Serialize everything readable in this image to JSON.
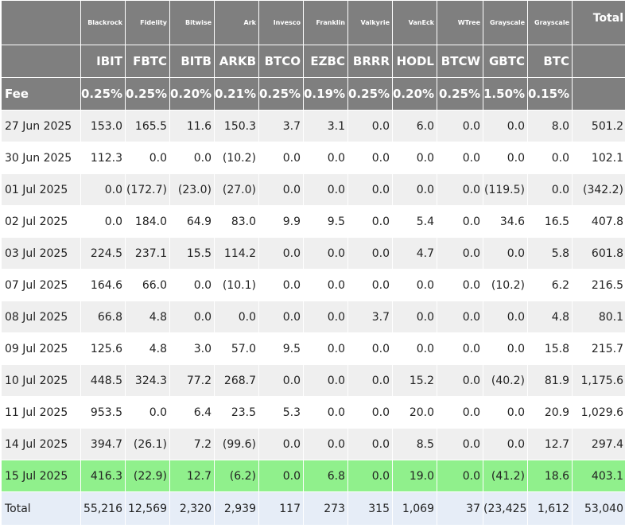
{
  "header": {
    "issuers": [
      "Blackrock",
      "Fidelity",
      "Bitwise",
      "Ark",
      "Invesco",
      "Franklin",
      "Valkyrie",
      "VanEck",
      "WTree",
      "Grayscale",
      "Grayscale"
    ],
    "total_label": "Total",
    "tickers": [
      "IBIT",
      "FBTC",
      "BITB",
      "ARKB",
      "BTCO",
      "EZBC",
      "BRRR",
      "HODL",
      "BTCW",
      "GBTC",
      "BTC"
    ],
    "fee_label": "Fee",
    "fees": [
      "0.25%",
      "0.25%",
      "0.20%",
      "0.21%",
      "0.25%",
      "0.19%",
      "0.25%",
      "0.20%",
      "0.25%",
      "1.50%",
      "0.15%"
    ]
  },
  "rows": [
    {
      "date": "27 Jun 2025",
      "cells": [
        "153.0",
        "165.5",
        "11.6",
        "150.3",
        "3.7",
        "3.1",
        "0.0",
        "6.0",
        "0.0",
        "0.0",
        "8.0"
      ],
      "total": "501.2"
    },
    {
      "date": "30 Jun 2025",
      "cells": [
        "112.3",
        "0.0",
        "0.0",
        "(10.2)",
        "0.0",
        "0.0",
        "0.0",
        "0.0",
        "0.0",
        "0.0",
        "0.0"
      ],
      "total": "102.1"
    },
    {
      "date": "01 Jul 2025",
      "cells": [
        "0.0",
        "(172.7)",
        "(23.0)",
        "(27.0)",
        "0.0",
        "0.0",
        "0.0",
        "0.0",
        "0.0",
        "(119.5)",
        "0.0"
      ],
      "total": "(342.2)"
    },
    {
      "date": "02 Jul 2025",
      "cells": [
        "0.0",
        "184.0",
        "64.9",
        "83.0",
        "9.9",
        "9.5",
        "0.0",
        "5.4",
        "0.0",
        "34.6",
        "16.5"
      ],
      "total": "407.8"
    },
    {
      "date": "03 Jul 2025",
      "cells": [
        "224.5",
        "237.1",
        "15.5",
        "114.2",
        "0.0",
        "0.0",
        "0.0",
        "4.7",
        "0.0",
        "0.0",
        "5.8"
      ],
      "total": "601.8"
    },
    {
      "date": "07 Jul 2025",
      "cells": [
        "164.6",
        "66.0",
        "0.0",
        "(10.1)",
        "0.0",
        "0.0",
        "0.0",
        "0.0",
        "0.0",
        "(10.2)",
        "6.2"
      ],
      "total": "216.5"
    },
    {
      "date": "08 Jul 2025",
      "cells": [
        "66.8",
        "4.8",
        "0.0",
        "0.0",
        "0.0",
        "0.0",
        "3.7",
        "0.0",
        "0.0",
        "0.0",
        "4.8"
      ],
      "total": "80.1"
    },
    {
      "date": "09 Jul 2025",
      "cells": [
        "125.6",
        "4.8",
        "3.0",
        "57.0",
        "9.5",
        "0.0",
        "0.0",
        "0.0",
        "0.0",
        "0.0",
        "15.8"
      ],
      "total": "215.7"
    },
    {
      "date": "10 Jul 2025",
      "cells": [
        "448.5",
        "324.3",
        "77.2",
        "268.7",
        "0.0",
        "0.0",
        "0.0",
        "15.2",
        "0.0",
        "(40.2)",
        "81.9"
      ],
      "total": "1,175.6"
    },
    {
      "date": "11 Jul 2025",
      "cells": [
        "953.5",
        "0.0",
        "6.4",
        "23.5",
        "5.3",
        "0.0",
        "0.0",
        "20.0",
        "0.0",
        "0.0",
        "20.9"
      ],
      "total": "1,029.6"
    },
    {
      "date": "14 Jul 2025",
      "cells": [
        "394.7",
        "(26.1)",
        "7.2",
        "(99.6)",
        "0.0",
        "0.0",
        "0.0",
        "8.5",
        "0.0",
        "0.0",
        "12.7"
      ],
      "total": "297.4"
    },
    {
      "date": "15 Jul 2025",
      "cells": [
        "416.3",
        "(22.9)",
        "12.7",
        "(6.2)",
        "0.0",
        "6.8",
        "0.0",
        "19.0",
        "0.0",
        "(41.2)",
        "18.6"
      ],
      "total": "403.1"
    }
  ],
  "totals": {
    "label": "Total",
    "cells": [
      "55,216",
      "12,569",
      "2,320",
      "2,939",
      "117",
      "273",
      "315",
      "1,069",
      "37",
      "(23,425)",
      "1,612"
    ],
    "total": "53,040"
  },
  "highlight_row_color": "#90f08c",
  "header_color": "#7f7f7f",
  "negative_color": "#e0161d",
  "totals_row_color": "#e6edf7"
}
